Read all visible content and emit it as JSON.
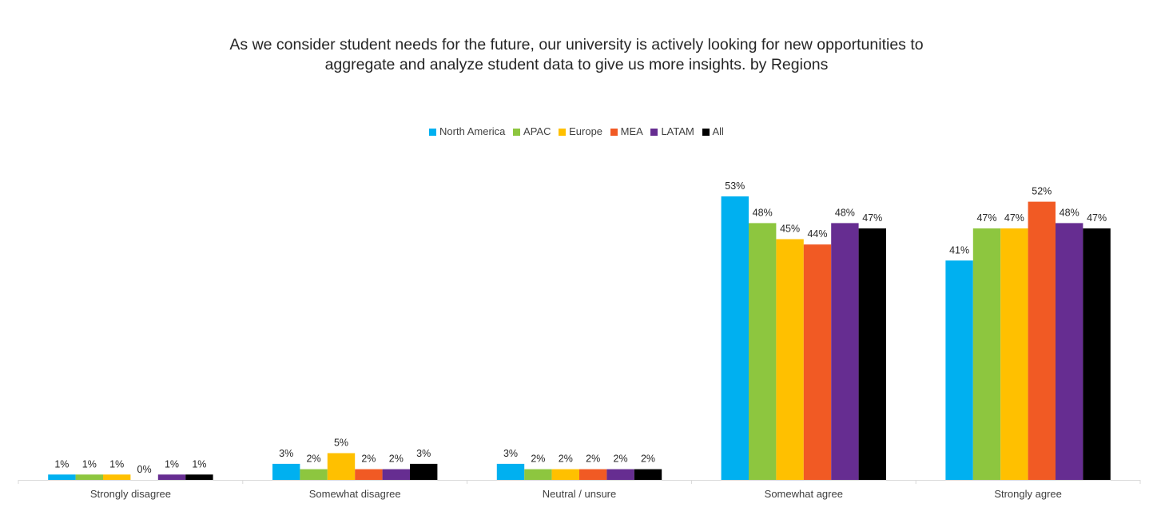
{
  "chart_data": {
    "type": "bar",
    "title_lines": [
      "As we consider student needs for the future, our university is actively looking for new opportunities to",
      "aggregate and analyze student data to give us more insights. by Regions"
    ],
    "categories": [
      "Strongly disagree",
      "Somewhat disagree",
      "Neutral / unsure",
      "Somewhat agree",
      "Strongly agree"
    ],
    "series": [
      {
        "name": "North America",
        "color": "#00b0f0",
        "values": [
          1,
          3,
          3,
          53,
          41
        ],
        "labels": [
          "1%",
          "3%",
          "3%",
          "53%",
          "41%"
        ]
      },
      {
        "name": "APAC",
        "color": "#8dc63f",
        "values": [
          1,
          2,
          2,
          48,
          47
        ],
        "labels": [
          "1%",
          "2%",
          "2%",
          "48%",
          "47%"
        ]
      },
      {
        "name": "Europe",
        "color": "#ffc000",
        "values": [
          1,
          5,
          2,
          45,
          47
        ],
        "labels": [
          "1%",
          "5%",
          "2%",
          "45%",
          "47%"
        ]
      },
      {
        "name": "MEA",
        "color": "#f15a24",
        "values": [
          0,
          2,
          2,
          44,
          52
        ],
        "labels": [
          "0%",
          "2%",
          "2%",
          "44%",
          "52%"
        ]
      },
      {
        "name": "LATAM",
        "color": "#662d91",
        "values": [
          1,
          2,
          2,
          48,
          48
        ],
        "labels": [
          "1%",
          "2%",
          "2%",
          "48%",
          "48%"
        ]
      },
      {
        "name": "All",
        "color": "#000000",
        "values": [
          1,
          3,
          2,
          47,
          47
        ],
        "labels": [
          "1%",
          "3%",
          "2%",
          "47%",
          "47%"
        ]
      }
    ],
    "legend_position": "top",
    "grid": false,
    "ylim": [
      0,
      53
    ]
  }
}
